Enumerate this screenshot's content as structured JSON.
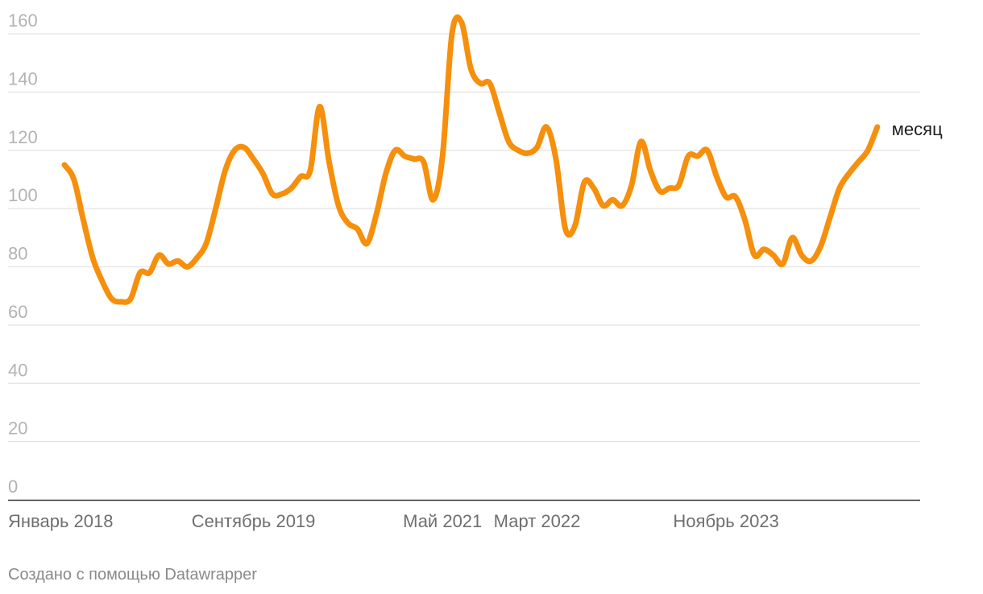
{
  "chart_data": {
    "type": "line",
    "title": "",
    "xlabel": "",
    "ylabel": "",
    "ylim": [
      0,
      160
    ],
    "yticks": [
      0,
      20,
      40,
      60,
      80,
      100,
      120,
      140,
      160
    ],
    "x_start": "2018-01",
    "x_end": "2025-06",
    "xtick_labels": [
      {
        "label": "Январь 2018",
        "date": "2018-01"
      },
      {
        "label": "Сентябрь 2019",
        "date": "2019-09"
      },
      {
        "label": "Май 2021",
        "date": "2021-05"
      },
      {
        "label": "Март 2022",
        "date": "2022-03"
      },
      {
        "label": "Ноябрь 2023",
        "date": "2023-11"
      }
    ],
    "grid": true,
    "series": [
      {
        "name": "месяц",
        "color": "#f68f0b",
        "points": [
          [
            "2018-01",
            115
          ],
          [
            "2018-02",
            110
          ],
          [
            "2018-03",
            96
          ],
          [
            "2018-04",
            83
          ],
          [
            "2018-05",
            75
          ],
          [
            "2018-06",
            69
          ],
          [
            "2018-07",
            68
          ],
          [
            "2018-08",
            69
          ],
          [
            "2018-09",
            78
          ],
          [
            "2018-10",
            78
          ],
          [
            "2018-11",
            84
          ],
          [
            "2018-12",
            81
          ],
          [
            "2019-01",
            82
          ],
          [
            "2019-02",
            80
          ],
          [
            "2019-03",
            83
          ],
          [
            "2019-04",
            88
          ],
          [
            "2019-05",
            100
          ],
          [
            "2019-06",
            113
          ],
          [
            "2019-07",
            120
          ],
          [
            "2019-08",
            121
          ],
          [
            "2019-09",
            117
          ],
          [
            "2019-10",
            112
          ],
          [
            "2019-11",
            105
          ],
          [
            "2019-12",
            105
          ],
          [
            "2020-01",
            107
          ],
          [
            "2020-02",
            111
          ],
          [
            "2020-03",
            113
          ],
          [
            "2020-04",
            135
          ],
          [
            "2020-05",
            116
          ],
          [
            "2020-06",
            101
          ],
          [
            "2020-07",
            95
          ],
          [
            "2020-08",
            93
          ],
          [
            "2020-09",
            88
          ],
          [
            "2020-10",
            98
          ],
          [
            "2020-11",
            112
          ],
          [
            "2020-12",
            120
          ],
          [
            "2021-01",
            118
          ],
          [
            "2021-02",
            117
          ],
          [
            "2021-03",
            116
          ],
          [
            "2021-04",
            103
          ],
          [
            "2021-05",
            118
          ],
          [
            "2021-06",
            160
          ],
          [
            "2021-07",
            164
          ],
          [
            "2021-08",
            148
          ],
          [
            "2021-09",
            143
          ],
          [
            "2021-10",
            143
          ],
          [
            "2021-11",
            133
          ],
          [
            "2021-12",
            123
          ],
          [
            "2022-01",
            120
          ],
          [
            "2022-02",
            119
          ],
          [
            "2022-03",
            121
          ],
          [
            "2022-04",
            128
          ],
          [
            "2022-05",
            117
          ],
          [
            "2022-06",
            93
          ],
          [
            "2022-07",
            94
          ],
          [
            "2022-08",
            109
          ],
          [
            "2022-09",
            107
          ],
          [
            "2022-10",
            101
          ],
          [
            "2022-11",
            103
          ],
          [
            "2022-12",
            101
          ],
          [
            "2023-01",
            108
          ],
          [
            "2023-02",
            123
          ],
          [
            "2023-03",
            113
          ],
          [
            "2023-04",
            106
          ],
          [
            "2023-05",
            107
          ],
          [
            "2023-06",
            108
          ],
          [
            "2023-07",
            118
          ],
          [
            "2023-08",
            118
          ],
          [
            "2023-09",
            120
          ],
          [
            "2023-10",
            111
          ],
          [
            "2023-11",
            104
          ],
          [
            "2023-12",
            104
          ],
          [
            "2024-01",
            96
          ],
          [
            "2024-02",
            84
          ],
          [
            "2024-03",
            86
          ],
          [
            "2024-04",
            84
          ],
          [
            "2024-05",
            81
          ],
          [
            "2024-06",
            90
          ],
          [
            "2024-07",
            84
          ],
          [
            "2024-08",
            82
          ],
          [
            "2024-09",
            87
          ],
          [
            "2024-10",
            97
          ],
          [
            "2024-11",
            107
          ],
          [
            "2024-12",
            112
          ],
          [
            "2025-01",
            116
          ],
          [
            "2025-02",
            120
          ],
          [
            "2025-03",
            128
          ]
        ]
      }
    ]
  },
  "footer": {
    "credit": "Создано с помощью Datawrapper"
  }
}
